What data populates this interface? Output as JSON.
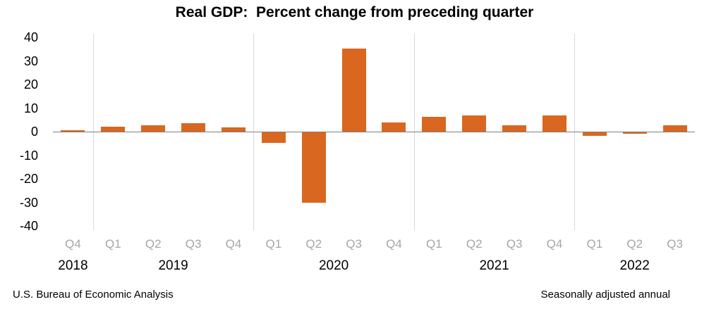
{
  "title": "Real GDP:  Percent change from preceding quarter",
  "footer": {
    "left": "U.S. Bureau of Economic Analysis",
    "right": "Seasonally adjusted annual"
  },
  "colors": {
    "bar": "#D96720",
    "axis_line": "#7F7F7F",
    "separator_line": "#D9D9D9",
    "quarter_label": "#A6A6A6",
    "year_label": "#000000"
  },
  "chart_data": {
    "type": "bar",
    "title": "Real GDP:  Percent change from preceding quarter",
    "categories": [
      "Q4",
      "Q1",
      "Q2",
      "Q3",
      "Q4",
      "Q1",
      "Q2",
      "Q3",
      "Q4",
      "Q1",
      "Q2",
      "Q3",
      "Q4",
      "Q1",
      "Q2",
      "Q3"
    ],
    "values": [
      0.7,
      2.2,
      2.7,
      3.6,
      1.8,
      -4.6,
      -29.9,
      35.3,
      3.9,
      6.3,
      7.0,
      2.7,
      7.0,
      -1.6,
      -0.6,
      2.6
    ],
    "year_groups": [
      {
        "label": "2018",
        "count": 1
      },
      {
        "label": "2019",
        "count": 4
      },
      {
        "label": "2020",
        "count": 4
      },
      {
        "label": "2021",
        "count": 4
      },
      {
        "label": "2022",
        "count": 3
      }
    ],
    "ylabel": "",
    "xlabel": "",
    "ylim": [
      -40,
      40
    ],
    "y_ticks": [
      40,
      30,
      20,
      10,
      0,
      -10,
      -20,
      -30,
      -40
    ],
    "grid": "vertical-year-separators",
    "legend": "none",
    "units": "percent, seasonally adjusted annual rate"
  }
}
